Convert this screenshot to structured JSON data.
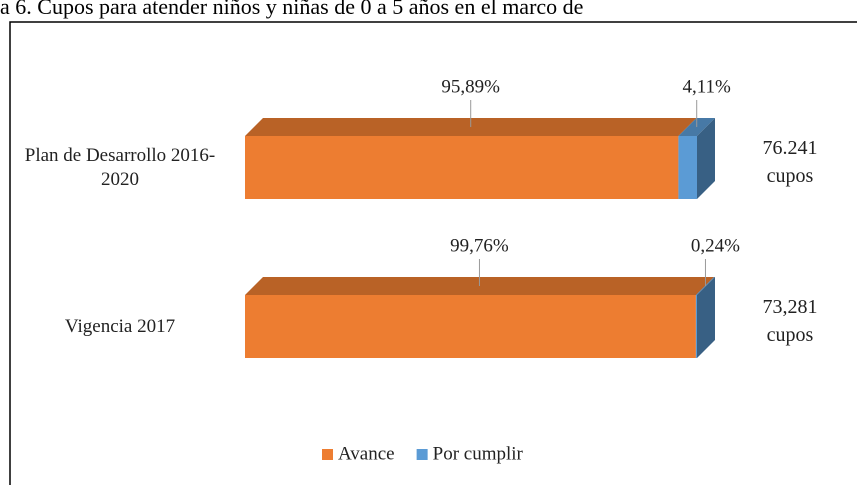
{
  "chart_data": {
    "type": "bar3d_stacked_horizontal",
    "title": "a 6. Cupos para atender niños y niñas de 0 a 5 años en el marco de",
    "categories": [
      "Plan de Desarrollo 2016-2020",
      "Vigencia 2017"
    ],
    "series": [
      {
        "name": "Avance",
        "color": "#ED7D31",
        "values": [
          95.89,
          99.76
        ],
        "value_labels": [
          "95,89%",
          "99,76%"
        ]
      },
      {
        "name": "Por cumplir",
        "color": "#5B9BD5",
        "values": [
          4.11,
          0.24
        ],
        "value_labels": [
          "4,11%",
          "0,24%"
        ]
      }
    ],
    "annotations": [
      "76.241 cupos",
      "73,281 cupos"
    ],
    "xlim": [
      0,
      100
    ],
    "legend": "bottom"
  }
}
